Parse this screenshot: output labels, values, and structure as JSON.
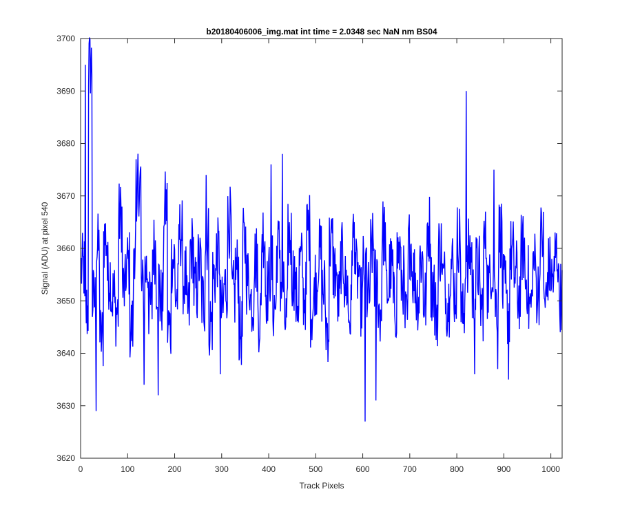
{
  "chart_data": {
    "type": "line",
    "title": "b20180406006_img.mat int time = 2.0348 sec  NaN nm BS04",
    "xlabel": "Track Pixels",
    "ylabel": "Signal (ADU) at pixel 540",
    "xlim": [
      0,
      1024
    ],
    "ylim": [
      3620,
      3700
    ],
    "xticks": [
      0,
      100,
      200,
      300,
      400,
      500,
      600,
      700,
      800,
      900,
      1000
    ],
    "yticks": [
      3620,
      3630,
      3640,
      3650,
      3660,
      3670,
      3680,
      3690,
      3700
    ],
    "grid": false,
    "legend": "none",
    "line_color": "#0000ff",
    "series": [
      {
        "x_start": 1,
        "x_step": 1,
        "noise_baseline": 3654,
        "noise_range": [
          3641,
          3668
        ],
        "values_sampled_every_8_pixels": [
          3656,
          3648,
          3695,
          3650,
          3660,
          3643,
          3662,
          3655,
          3651,
          3648,
          3666,
          3652,
          3657,
          3645,
          3661,
          3673,
          3652,
          3656,
          3649,
          3660,
          3654,
          3650,
          3668,
          3645,
          3658,
          3651,
          3663,
          3654,
          3648,
          3660,
          3652,
          3657,
          3650,
          3662,
          3646,
          3655,
          3659,
          3648,
          3653,
          3665,
          3651,
          3656,
          3644,
          3661,
          3654,
          3650,
          3658,
          3647,
          3663,
          3652,
          3656,
          3649,
          3660,
          3653,
          3646,
          3662,
          3655,
          3650,
          3657,
          3651,
          3664,
          3648,
          3654,
          3659,
          3652,
          3645,
          3661,
          3656,
          3650,
          3658,
          3653,
          3647,
          3662,
          3655,
          3650,
          3657,
          3651,
          3660,
          3654,
          3648,
          3663,
          3652,
          3656,
          3649,
          3659,
          3654,
          3646,
          3661,
          3655,
          3651,
          3658,
          3650,
          3664,
          3653,
          3648,
          3660,
          3654,
          3650,
          3657,
          3652,
          3662,
          3647,
          3655,
          3659,
          3651,
          3656,
          3649,
          3661,
          3653,
          3657,
          3650,
          3663,
          3652,
          3648,
          3659,
          3655,
          3651,
          3660,
          3654,
          3649,
          3657,
          3652,
          3662,
          3650,
          3656,
          3654,
          3659,
          3651,
          3655
        ],
        "spikes": [
          {
            "x": 10,
            "y": 3695
          },
          {
            "x": 33,
            "y": 3629
          },
          {
            "x": 118,
            "y": 3677
          },
          {
            "x": 135,
            "y": 3634
          },
          {
            "x": 165,
            "y": 3632
          },
          {
            "x": 267,
            "y": 3674
          },
          {
            "x": 297,
            "y": 3636
          },
          {
            "x": 405,
            "y": 3676
          },
          {
            "x": 429,
            "y": 3678
          },
          {
            "x": 605,
            "y": 3627
          },
          {
            "x": 628,
            "y": 3631
          },
          {
            "x": 820,
            "y": 3690
          },
          {
            "x": 838,
            "y": 3636
          },
          {
            "x": 879,
            "y": 3675
          },
          {
            "x": 887,
            "y": 3637
          },
          {
            "x": 910,
            "y": 3635
          }
        ]
      }
    ]
  }
}
